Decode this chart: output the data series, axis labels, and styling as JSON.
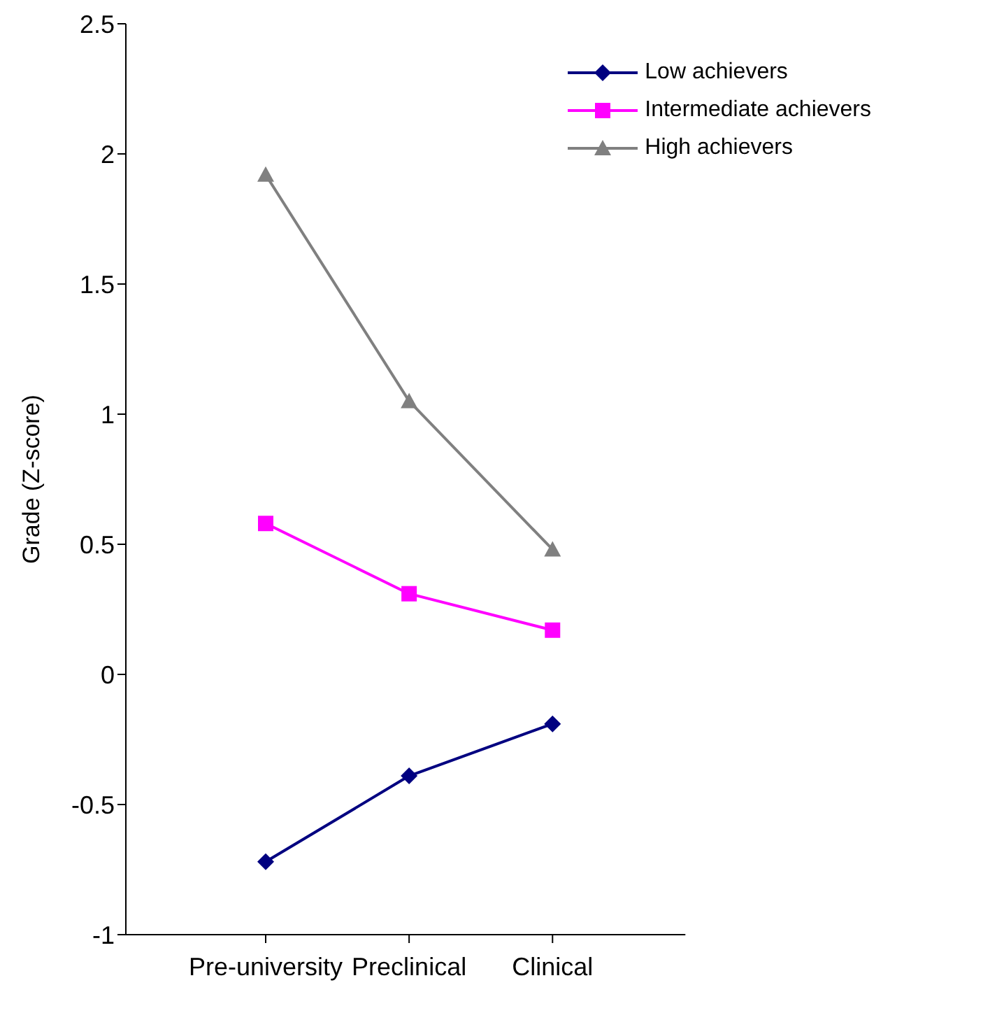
{
  "chart_data": {
    "type": "line",
    "ylabel": "Grade (Z-score)",
    "categories": [
      "Pre-university",
      "Preclinical",
      "Clinical"
    ],
    "series": [
      {
        "name": "Low achievers",
        "color": "#000080",
        "marker": "diamond",
        "values": [
          -0.72,
          -0.39,
          -0.19
        ]
      },
      {
        "name": "Intermediate achievers",
        "color": "#ff00ff",
        "marker": "square",
        "values": [
          0.58,
          0.31,
          0.17
        ]
      },
      {
        "name": "High achievers",
        "color": "#808080",
        "marker": "triangle",
        "values": [
          1.92,
          1.05,
          0.48
        ]
      }
    ],
    "ylim": [
      -1,
      2.5
    ],
    "yticks": [
      -1,
      -0.5,
      0,
      0.5,
      1,
      1.5,
      2,
      2.5
    ],
    "grid": false,
    "legend": "top right",
    "line_style": "solid"
  }
}
